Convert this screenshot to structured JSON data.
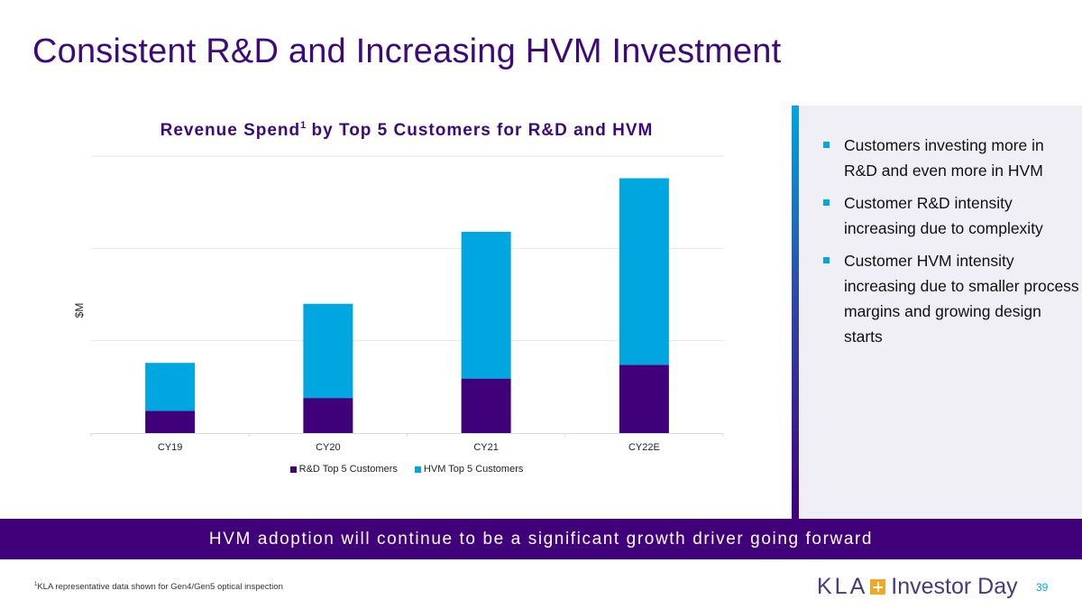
{
  "slide": {
    "title": "Consistent R&D and Increasing HVM Investment",
    "page_number": "39",
    "banner": "HVM adoption will continue to be a significant growth driver going forward",
    "footnote_marker": "1",
    "footnote": "KLA representative data shown for Gen4/Gen5 optical inspection",
    "logo": {
      "brand": "KLA",
      "plus_icon": "plus-square-icon",
      "event": "Investor Day"
    }
  },
  "bullets": [
    {
      "icon": "square-bullet-icon",
      "text": "Customers investing more in R&D and even more in HVM"
    },
    {
      "icon": "square-bullet-icon",
      "text": "Customer R&D intensity increasing due to complexity"
    },
    {
      "icon": "square-bullet-icon",
      "text": "Customer HVM intensity increasing due to smaller process margins and growing design starts"
    }
  ],
  "colors": {
    "primary_purple": "#40007A",
    "accent_cyan": "#00A6E0",
    "panel_bg": "#EFEFF5",
    "title_purple": "#3D0A7A",
    "logo_orange": "#F5A623"
  },
  "chart_data": {
    "type": "bar",
    "stacked": true,
    "title_main": "Revenue Spend",
    "title_superscript": "1",
    "title_rest": " by Top 5 Customers for R&D and HVM",
    "title": "Revenue Spend¹ by Top 5 Customers for R&D and HVM",
    "xlabel": "",
    "ylabel": "$M",
    "y_tick_labels_shown": false,
    "y_units_note": "No y tick labels shown; values estimated in gridline-interval units",
    "ylim": [
      0,
      3
    ],
    "gridlines": [
      1,
      2,
      3
    ],
    "grid": true,
    "legend_position": "bottom",
    "categories": [
      "CY19",
      "CY20",
      "CY21",
      "CY22E"
    ],
    "series": [
      {
        "name": "R&D Top 5 Customers",
        "color": "#40007A",
        "values": [
          0.24,
          0.38,
          0.59,
          0.74
        ]
      },
      {
        "name": "HVM Top 5 Customers",
        "color": "#00A6E0",
        "values": [
          0.52,
          1.02,
          1.59,
          2.02
        ]
      }
    ]
  }
}
